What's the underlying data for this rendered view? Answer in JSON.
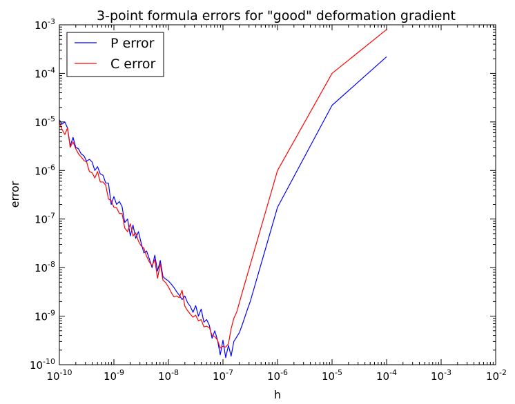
{
  "chart_data": {
    "type": "line",
    "title": "3-point formula errors for \"good\" deformation gradient",
    "xlabel": "h",
    "ylabel": "error",
    "xscale": "log",
    "yscale": "log",
    "xlim": [
      1e-10,
      0.01
    ],
    "ylim": [
      1e-10,
      0.001
    ],
    "x_ticks": [
      {
        "value": 1e-10,
        "base": "10",
        "exp": "-10"
      },
      {
        "value": 1e-09,
        "base": "10",
        "exp": "-9"
      },
      {
        "value": 1e-08,
        "base": "10",
        "exp": "-8"
      },
      {
        "value": 1e-07,
        "base": "10",
        "exp": "-7"
      },
      {
        "value": 1e-06,
        "base": "10",
        "exp": "-6"
      },
      {
        "value": 1e-05,
        "base": "10",
        "exp": "-5"
      },
      {
        "value": 0.0001,
        "base": "10",
        "exp": "-4"
      },
      {
        "value": 0.001,
        "base": "10",
        "exp": "-3"
      },
      {
        "value": 0.01,
        "base": "10",
        "exp": "-2"
      }
    ],
    "y_ticks": [
      {
        "value": 1e-10,
        "base": "10",
        "exp": "-10"
      },
      {
        "value": 1e-09,
        "base": "10",
        "exp": "-9"
      },
      {
        "value": 1e-08,
        "base": "10",
        "exp": "-8"
      },
      {
        "value": 1e-07,
        "base": "10",
        "exp": "-7"
      },
      {
        "value": 1e-06,
        "base": "10",
        "exp": "-6"
      },
      {
        "value": 1e-05,
        "base": "10",
        "exp": "-5"
      },
      {
        "value": 0.0001,
        "base": "10",
        "exp": "-4"
      },
      {
        "value": 0.001,
        "base": "10",
        "exp": "-3"
      }
    ],
    "grid": false,
    "legend_position": "top-left",
    "series": [
      {
        "name": "P error",
        "color": "#0000ff",
        "points": [
          [
            1e-10,
            1.1e-05
          ],
          [
            1.12e-10,
            9e-06
          ],
          [
            1.26e-10,
            1e-05
          ],
          [
            1.41e-10,
            7.5e-06
          ],
          [
            1.58e-10,
            3.2e-06
          ],
          [
            1.78e-10,
            4.8e-06
          ],
          [
            2e-10,
            3e-06
          ],
          [
            2.24e-10,
            2.8e-06
          ],
          [
            2.51e-10,
            2.2e-06
          ],
          [
            2.82e-10,
            2e-06
          ],
          [
            3.16e-10,
            1.55e-06
          ],
          [
            3.55e-10,
            1.7e-06
          ],
          [
            3.98e-10,
            1.5e-06
          ],
          [
            4.47e-10,
            1e-06
          ],
          [
            5.01e-10,
            1.2e-06
          ],
          [
            5.62e-10,
            8.5e-07
          ],
          [
            6.31e-10,
            8e-07
          ],
          [
            7.08e-10,
            5.5e-07
          ],
          [
            7.94e-10,
            5.5e-07
          ],
          [
            8.91e-10,
            2e-07
          ],
          [
            1e-09,
            2.9e-07
          ],
          [
            1.12e-09,
            2e-07
          ],
          [
            1.26e-09,
            2.3e-07
          ],
          [
            1.41e-09,
            1.8e-07
          ],
          [
            1.58e-09,
            8.5e-08
          ],
          [
            1.78e-09,
            1e-07
          ],
          [
            2e-09,
            4.5e-08
          ],
          [
            2.24e-09,
            7.5e-08
          ],
          [
            2.51e-09,
            4e-08
          ],
          [
            2.82e-09,
            5.5e-08
          ],
          [
            3.16e-09,
            3.2e-08
          ],
          [
            3.55e-09,
            2e-08
          ],
          [
            3.98e-09,
            2.2e-08
          ],
          [
            4.47e-09,
            1.5e-08
          ],
          [
            5.01e-09,
            1e-08
          ],
          [
            5.62e-09,
            1.8e-08
          ],
          [
            6.31e-09,
            8.5e-09
          ],
          [
            7.08e-09,
            1.4e-08
          ],
          [
            7.94e-09,
            6.5e-09
          ],
          [
            8.91e-09,
            5.8e-09
          ],
          [
            1e-08,
            5.3e-09
          ],
          [
            1.12e-08,
            4.6e-09
          ],
          [
            1.26e-08,
            3.9e-09
          ],
          [
            1.41e-08,
            3.2e-09
          ],
          [
            1.58e-08,
            2.7e-09
          ],
          [
            1.78e-08,
            2.2e-09
          ],
          [
            2e-08,
            2.6e-09
          ],
          [
            2.24e-08,
            1.9e-09
          ],
          [
            2.51e-08,
            1.6e-09
          ],
          [
            2.82e-08,
            1.2e-09
          ],
          [
            3.16e-08,
            1.65e-09
          ],
          [
            3.55e-08,
            1e-09
          ],
          [
            3.98e-08,
            1.4e-09
          ],
          [
            4.47e-08,
            7.5e-10
          ],
          [
            5.01e-08,
            8.5e-10
          ],
          [
            5.62e-08,
            6.5e-10
          ],
          [
            6.31e-08,
            3.5e-10
          ],
          [
            7.08e-08,
            5e-10
          ],
          [
            7.94e-08,
            3.2e-10
          ],
          [
            8.91e-08,
            1.6e-10
          ],
          [
            1e-07,
            3.2e-10
          ],
          [
            1.12e-07,
            1.4e-10
          ],
          [
            1.26e-07,
            2.5e-10
          ],
          [
            1.41e-07,
            1.5e-10
          ],
          [
            1.58e-07,
            3e-10
          ],
          [
            1.78e-07,
            3.7e-10
          ],
          [
            2e-07,
            4.6e-10
          ],
          [
            2.24e-07,
            6.5e-10
          ],
          [
            2.51e-07,
            9.5e-10
          ],
          [
            2.82e-07,
            1.4e-09
          ],
          [
            3.16e-07,
            2e-09
          ],
          [
            1e-06,
            1.75e-07
          ],
          [
            1e-05,
            2.2e-05
          ],
          [
            0.0001,
            0.00022
          ]
        ]
      },
      {
        "name": "C error",
        "color": "#ff0000",
        "points": [
          [
            1e-10,
            1e-05
          ],
          [
            1.12e-10,
            7e-06
          ],
          [
            1.26e-10,
            5.5e-06
          ],
          [
            1.41e-10,
            7.5e-06
          ],
          [
            1.58e-10,
            3e-06
          ],
          [
            1.78e-10,
            3.9e-06
          ],
          [
            2e-10,
            2.8e-06
          ],
          [
            2.24e-10,
            2.2e-06
          ],
          [
            2.51e-10,
            1.9e-06
          ],
          [
            2.82e-10,
            1.6e-06
          ],
          [
            3.16e-10,
            1.5e-06
          ],
          [
            3.55e-10,
            9.5e-07
          ],
          [
            3.98e-10,
            9e-07
          ],
          [
            4.47e-10,
            7e-07
          ],
          [
            5.01e-10,
            9.5e-07
          ],
          [
            5.62e-10,
            5.8e-07
          ],
          [
            6.31e-10,
            5.8e-07
          ],
          [
            7.08e-10,
            5e-07
          ],
          [
            7.94e-10,
            2.6e-07
          ],
          [
            8.91e-10,
            2.4e-07
          ],
          [
            1e-09,
            1.75e-07
          ],
          [
            1.12e-09,
            1.7e-07
          ],
          [
            1.26e-09,
            1.3e-07
          ],
          [
            1.41e-09,
            1.3e-07
          ],
          [
            1.58e-09,
            6.5e-08
          ],
          [
            1.78e-09,
            5.5e-08
          ],
          [
            2e-09,
            8e-08
          ],
          [
            2.24e-09,
            4.5e-08
          ],
          [
            2.51e-09,
            5.2e-08
          ],
          [
            2.82e-09,
            3.5e-08
          ],
          [
            3.16e-09,
            2.8e-08
          ],
          [
            3.55e-09,
            2.5e-08
          ],
          [
            3.98e-09,
            1.7e-08
          ],
          [
            4.47e-09,
            1.3e-08
          ],
          [
            5.01e-09,
            1.1e-08
          ],
          [
            5.62e-09,
            1.45e-08
          ],
          [
            6.31e-09,
            6e-09
          ],
          [
            7.08e-09,
            1.2e-08
          ],
          [
            7.94e-09,
            5.5e-09
          ],
          [
            8.91e-09,
            4.9e-09
          ],
          [
            1e-08,
            4e-09
          ],
          [
            1.12e-08,
            3.1e-09
          ],
          [
            1.26e-08,
            2.5e-09
          ],
          [
            1.41e-08,
            2.6e-09
          ],
          [
            1.58e-08,
            2.4e-09
          ],
          [
            1.78e-08,
            3.4e-09
          ],
          [
            2e-08,
            1.6e-09
          ],
          [
            2.24e-08,
            1.3e-09
          ],
          [
            2.51e-08,
            1.1e-09
          ],
          [
            2.82e-08,
            9.5e-10
          ],
          [
            3.16e-08,
            1.05e-09
          ],
          [
            3.55e-08,
            8e-10
          ],
          [
            3.98e-08,
            8.5e-10
          ],
          [
            4.47e-08,
            6e-10
          ],
          [
            5.01e-08,
            6.2e-10
          ],
          [
            5.62e-08,
            5.8e-10
          ],
          [
            6.31e-08,
            4e-10
          ],
          [
            7.08e-08,
            3.8e-10
          ],
          [
            7.94e-08,
            3.2e-10
          ],
          [
            8.91e-08,
            2.2e-10
          ],
          [
            1e-07,
            2.4e-10
          ],
          [
            1.12e-07,
            2.3e-10
          ],
          [
            1.26e-07,
            2.7e-10
          ],
          [
            1.41e-07,
            5.5e-10
          ],
          [
            1.58e-07,
            9e-10
          ],
          [
            1.78e-07,
            1.2e-09
          ],
          [
            2e-07,
            1.9e-09
          ],
          [
            2.24e-07,
            3e-09
          ],
          [
            1e-06,
            1e-06
          ],
          [
            1e-05,
            0.0001
          ],
          [
            0.0001,
            0.0008
          ]
        ]
      }
    ]
  }
}
